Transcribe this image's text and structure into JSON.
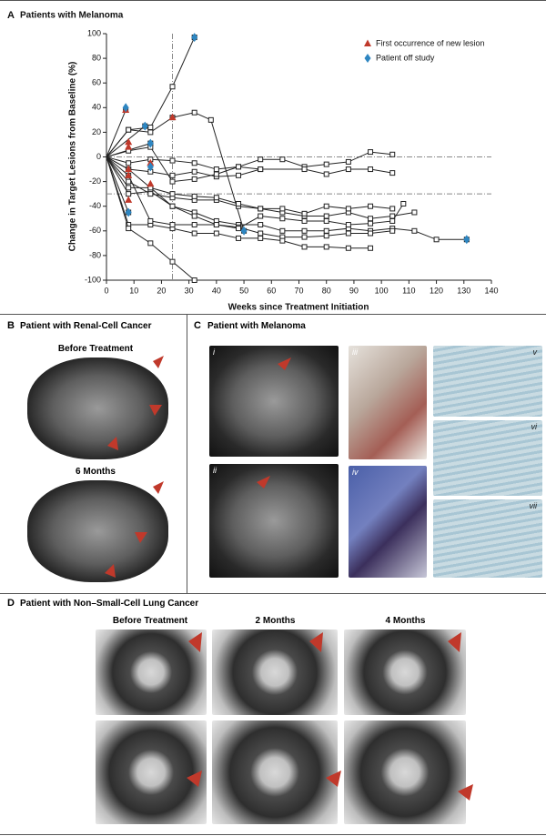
{
  "chart_data": {
    "type": "line",
    "panel_label": "A",
    "title": "Patients with Melanoma",
    "x_label": "Weeks since Treatment Initiation",
    "y_label": "Change in Target Lesions from Baseline (%)",
    "xlim": [
      0,
      140
    ],
    "xticks": [
      0,
      10,
      20,
      30,
      40,
      50,
      60,
      70,
      80,
      90,
      100,
      110,
      120,
      130,
      140
    ],
    "ylim": [
      -100,
      100
    ],
    "yticks": [
      -100,
      -80,
      -60,
      -40,
      -20,
      0,
      20,
      40,
      60,
      80,
      100
    ],
    "ref_x": [
      24
    ],
    "ref_y": [
      0,
      -30
    ],
    "line_color": "#222222",
    "series": [
      {
        "x": [
          0,
          8,
          16,
          24,
          32
        ],
        "values": [
          0,
          22,
          24,
          57,
          97
        ]
      },
      {
        "x": [
          0,
          8,
          16,
          24,
          32,
          38,
          50
        ],
        "values": [
          0,
          22,
          20,
          32,
          36,
          30,
          -60
        ]
      },
      {
        "x": [
          0,
          7
        ],
        "values": [
          0,
          38
        ]
      },
      {
        "x": [
          0,
          14
        ],
        "values": [
          0,
          25
        ]
      },
      {
        "x": [
          0,
          16
        ],
        "values": [
          0,
          11
        ]
      },
      {
        "x": [
          0,
          8,
          16,
          24,
          32,
          40,
          48,
          56,
          64,
          72,
          80,
          88,
          96,
          104
        ],
        "values": [
          0,
          -5,
          -2,
          -3,
          -5,
          -10,
          -8,
          -2,
          -2,
          -8,
          -6,
          -4,
          4,
          2
        ]
      },
      {
        "x": [
          0,
          8,
          16,
          24,
          32,
          40,
          48,
          56,
          72,
          80,
          88,
          96,
          104
        ],
        "values": [
          0,
          -10,
          -12,
          -15,
          -12,
          -16,
          -15,
          -10,
          -10,
          -14,
          -10,
          -10,
          -13
        ]
      },
      {
        "x": [
          0,
          8,
          16,
          24,
          32,
          40,
          48,
          56,
          64,
          72,
          80,
          88,
          96,
          104,
          112,
          120,
          131
        ],
        "values": [
          0,
          -25,
          -25,
          -40,
          -45,
          -52,
          -55,
          -55,
          -60,
          -60,
          -60,
          -58,
          -60,
          -58,
          -60,
          -67,
          -67
        ]
      },
      {
        "x": [
          0,
          8,
          16,
          24,
          32,
          40,
          48,
          56,
          64,
          72,
          80,
          88,
          96,
          104
        ],
        "values": [
          0,
          -30,
          -28,
          -40,
          -48,
          -55,
          -57,
          -62,
          -65,
          -65,
          -64,
          -62,
          -62,
          -60
        ]
      },
      {
        "x": [
          0,
          8,
          16,
          24,
          32,
          40,
          48,
          56,
          64,
          72,
          80,
          88,
          96
        ],
        "values": [
          0,
          -55,
          -55,
          -58,
          -62,
          -62,
          -66,
          -66,
          -68,
          -73,
          -73,
          -74,
          -74
        ]
      },
      {
        "x": [
          0,
          8,
          16,
          24,
          32
        ],
        "values": [
          0,
          -58,
          -70,
          -85,
          -100
        ]
      },
      {
        "x": [
          0,
          8
        ],
        "values": [
          0,
          -45
        ]
      },
      {
        "x": [
          0,
          8,
          16,
          24,
          32,
          40,
          48,
          56,
          64,
          72,
          80,
          88,
          96,
          104,
          112
        ],
        "values": [
          0,
          -20,
          -30,
          -33,
          -35,
          -35,
          -40,
          -42,
          -45,
          -48,
          -48,
          -45,
          -50,
          -48,
          -45
        ]
      },
      {
        "x": [
          0,
          8,
          16,
          24,
          32,
          40,
          48,
          56,
          64,
          72,
          80,
          88,
          96,
          104
        ],
        "values": [
          0,
          -10,
          -25,
          -30,
          -32,
          -33,
          -38,
          -42,
          -42,
          -46,
          -40,
          -42,
          -40,
          -42
        ]
      },
      {
        "x": [
          0,
          8,
          16,
          24,
          32,
          40,
          48,
          56,
          64,
          72,
          80,
          88,
          96,
          104,
          108
        ],
        "values": [
          0,
          -15,
          -52,
          -55,
          -55,
          -55,
          -58,
          -48,
          -50,
          -52,
          -52,
          -55,
          -54,
          -52,
          -38
        ]
      },
      {
        "x": [
          0,
          8,
          16,
          24,
          32,
          40,
          48,
          56
        ],
        "values": [
          0,
          5,
          8,
          -20,
          -18,
          -14,
          -8,
          -10
        ]
      }
    ],
    "markers": [
      {
        "name": "First occurrence of new lesion",
        "color": "#c0392b",
        "shape": "triangle",
        "x": [
          7,
          8,
          8,
          8,
          8,
          8,
          16,
          16,
          24
        ],
        "values": [
          38,
          12,
          8,
          -10,
          -15,
          -35,
          -5,
          -22,
          32
        ]
      },
      {
        "name": "Patient off study",
        "color": "#2e86c1",
        "shape": "diamond",
        "x": [
          7,
          14,
          16,
          16,
          8,
          32,
          50,
          131
        ],
        "values": [
          40,
          25,
          11,
          -8,
          -45,
          97,
          -60,
          -67
        ]
      }
    ]
  },
  "panels": {
    "B": {
      "letter": "B",
      "title": "Patient with Renal-Cell Cancer",
      "images": [
        "Before Treatment",
        "6 Months"
      ]
    },
    "C": {
      "letter": "C",
      "title": "Patient with Melanoma",
      "images": [
        "i",
        "ii",
        "iii",
        "iv",
        "v",
        "vi",
        "vii"
      ]
    },
    "D": {
      "letter": "D",
      "title": "Patient with Non–Small-Cell Lung Cancer",
      "columns": [
        "Before Treatment",
        "2 Months",
        "4 Months"
      ]
    }
  }
}
